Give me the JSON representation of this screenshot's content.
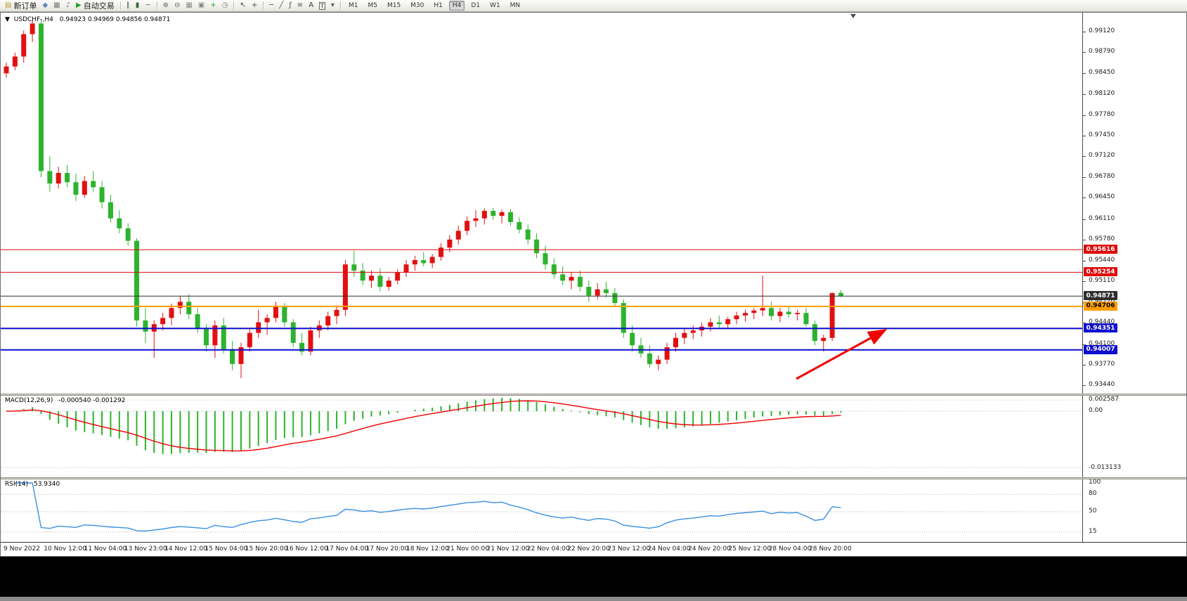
{
  "window": {
    "collapse_glyph": "▼",
    "title": "USDCHF-,H4",
    "ohlc_text": "0.94923 0.94969 0.94856 0.94871"
  },
  "toolbar": {
    "timeframes": [
      "M1",
      "M5",
      "M15",
      "M30",
      "H1",
      "H4",
      "D1",
      "W1",
      "MN"
    ],
    "active_timeframe": "H4",
    "notification_count": "1",
    "items": [
      {
        "kind": "labeled",
        "name": "new-order-button",
        "icon": "new-order-icon",
        "glyph": "▤",
        "glyph_color": "#b8952e",
        "label": "新订单"
      },
      {
        "kind": "icon",
        "name": "symbols-button",
        "icon": "diamond-icon",
        "glyph": "◆",
        "glyph_color": "#5b87c5"
      },
      {
        "kind": "icon",
        "name": "chart-window-button",
        "icon": "chart-window-icon",
        "glyph": "▦",
        "glyph_color": "#777777"
      },
      {
        "kind": "icon",
        "name": "sound-button",
        "icon": "speaker-icon",
        "glyph": "♪",
        "glyph_color": "#777777"
      },
      {
        "kind": "labeled",
        "name": "autotrade-button",
        "icon": "play-icon",
        "glyph": "▶",
        "glyph_color": "#23a523",
        "label": "自动交易"
      },
      {
        "kind": "sep"
      },
      {
        "kind": "icon",
        "name": "bar-chart-type-button",
        "icon": "bars-icon",
        "glyph": "∥",
        "glyph_color": "#4f6b3a"
      },
      {
        "kind": "icon",
        "name": "candle-chart-type-button",
        "icon": "candlestick-icon",
        "glyph": "▮",
        "glyph_color": "#3a6b35"
      },
      {
        "kind": "icon",
        "name": "line-chart-type-button",
        "icon": "line-chart-icon",
        "glyph": "~",
        "glyph_color": "#3a7b3a"
      },
      {
        "kind": "sep"
      },
      {
        "kind": "icon",
        "name": "zoom-in-button",
        "icon": "zoom-in-icon",
        "glyph": "⊕",
        "glyph_color": "#666666"
      },
      {
        "kind": "icon",
        "name": "zoom-out-button",
        "icon": "zoom-out-icon",
        "glyph": "⊖",
        "glyph_color": "#666666"
      },
      {
        "kind": "icon",
        "name": "grid-button",
        "icon": "grid-icon",
        "glyph": "▦",
        "glyph_color": "#8a8a8a"
      },
      {
        "kind": "icon",
        "name": "tile-windows-button",
        "icon": "tile-windows-icon",
        "glyph": "▣",
        "glyph_color": "#8a8a8a"
      },
      {
        "kind": "icon",
        "name": "indicators-button",
        "icon": "add-indicator-icon",
        "glyph": "+",
        "glyph_color": "#1fa51f"
      },
      {
        "kind": "icon",
        "name": "periods-button",
        "icon": "clock-icon",
        "glyph": "◷",
        "glyph_color": "#777777"
      },
      {
        "kind": "sep"
      },
      {
        "kind": "icon",
        "name": "cursor-button",
        "icon": "cursor-icon",
        "glyph": "↖",
        "glyph_color": "#444444"
      },
      {
        "kind": "icon",
        "name": "crosshair-button",
        "icon": "crosshair-icon",
        "glyph": "+",
        "glyph_color": "#444444"
      },
      {
        "kind": "sep"
      },
      {
        "kind": "icon",
        "name": "hline-button",
        "icon": "horizontal-line-icon",
        "glyph": "─",
        "glyph_color": "#555555"
      },
      {
        "kind": "icon",
        "name": "trendline-button",
        "icon": "trendline-icon",
        "glyph": "╱",
        "glyph_color": "#555555"
      },
      {
        "kind": "icon",
        "name": "fibo-button",
        "icon": "fibonacci-icon",
        "glyph": "ƒ",
        "glyph_color": "#555555"
      },
      {
        "kind": "icon",
        "name": "levels-button",
        "icon": "levels-icon",
        "glyph": "≡",
        "glyph_color": "#555555"
      },
      {
        "kind": "icon",
        "name": "text-button",
        "icon": "text-icon",
        "glyph": "A",
        "glyph_color": "#333333"
      },
      {
        "kind": "icon",
        "name": "text-label-button",
        "icon": "text-label-icon",
        "glyph": "T",
        "glyph_color": "#333333",
        "boxed": true
      },
      {
        "kind": "icon",
        "name": "shapes-button",
        "icon": "shapes-dropdown-icon",
        "glyph": "▾",
        "glyph_color": "#555555"
      },
      {
        "kind": "sep"
      },
      {
        "kind": "timeframes"
      }
    ]
  },
  "chart_data": {
    "type": "candlestick",
    "symbol": "USDCHF-",
    "period": "H4",
    "up_color": "#e21010",
    "down_color": "#2db32d",
    "price_axis_labels": [
      "0.99120",
      "0.98790",
      "0.98450",
      "0.98120",
      "0.97780",
      "0.97450",
      "0.97120",
      "0.96780",
      "0.96450",
      "0.96110",
      "0.95780",
      "0.95440",
      "0.95110",
      "0.94770",
      "0.94440",
      "0.94100",
      "0.93770",
      "0.93440"
    ],
    "time_axis_labels": [
      "9 Nov 2022",
      "10 Nov 12:00",
      "11 Nov 04:00",
      "13 Nov 23:00",
      "14 Nov 12:00",
      "15 Nov 04:00",
      "15 Nov 20:00",
      "16 Nov 12:00",
      "17 Nov 04:00",
      "17 Nov 20:00",
      "18 Nov 12:00",
      "21 Nov 00:00",
      "21 Nov 12:00",
      "22 Nov 04:00",
      "22 Nov 20:00",
      "23 Nov 12:00",
      "24 Nov 04:00",
      "24 Nov 20:00",
      "25 Nov 12:00",
      "28 Nov 04:00",
      "28 Nov 20:00"
    ],
    "levels": [
      {
        "name": "resistance-level-1",
        "value": 0.95616,
        "label": "0.95616",
        "color": "#dd0b0b",
        "width": 1
      },
      {
        "name": "resistance-level-2",
        "value": 0.95254,
        "label": "0.95254",
        "color": "#dd0b0b",
        "width": 1
      },
      {
        "name": "current-price-level",
        "value": 0.94871,
        "label": "0.94871",
        "color": "#2e2e2e",
        "width": 1
      },
      {
        "name": "pivot-level",
        "value": 0.94706,
        "label": "0.94706",
        "color": "#ff9e00",
        "width": 2,
        "text_color": "#000000"
      },
      {
        "name": "support-level-1",
        "value": 0.94351,
        "label": "0.94351",
        "color": "#0d0dcf",
        "width": 2
      },
      {
        "name": "support-level-2",
        "value": 0.94007,
        "label": "0.94007",
        "color": "#0d0dcf",
        "width": 2
      }
    ],
    "candles": [
      [
        0.9845,
        0.9862,
        0.9838,
        0.9856
      ],
      [
        0.9856,
        0.9878,
        0.985,
        0.9872
      ],
      [
        0.9872,
        0.9914,
        0.9862,
        0.9908
      ],
      [
        0.9908,
        0.993,
        0.9895,
        0.9925
      ],
      [
        0.9925,
        0.9932,
        0.9678,
        0.9688
      ],
      [
        0.9688,
        0.9712,
        0.9655,
        0.9668
      ],
      [
        0.9668,
        0.9695,
        0.966,
        0.9685
      ],
      [
        0.9685,
        0.9698,
        0.9662,
        0.967
      ],
      [
        0.967,
        0.9684,
        0.964,
        0.965
      ],
      [
        0.965,
        0.968,
        0.9645,
        0.9672
      ],
      [
        0.9672,
        0.9688,
        0.9655,
        0.9662
      ],
      [
        0.9662,
        0.9672,
        0.9628,
        0.9638
      ],
      [
        0.9638,
        0.965,
        0.9605,
        0.9612
      ],
      [
        0.9612,
        0.9625,
        0.9588,
        0.9596
      ],
      [
        0.9596,
        0.9604,
        0.9568,
        0.9576
      ],
      [
        0.9576,
        0.958,
        0.9438,
        0.9448
      ],
      [
        0.9448,
        0.9468,
        0.9412,
        0.943
      ],
      [
        0.943,
        0.9448,
        0.9388,
        0.9442
      ],
      [
        0.9442,
        0.946,
        0.9432,
        0.9452
      ],
      [
        0.9452,
        0.9475,
        0.944,
        0.9468
      ],
      [
        0.9468,
        0.9488,
        0.9458,
        0.9478
      ],
      [
        0.9478,
        0.949,
        0.945,
        0.9458
      ],
      [
        0.9458,
        0.9468,
        0.9428,
        0.9435
      ],
      [
        0.9435,
        0.9442,
        0.9398,
        0.9408
      ],
      [
        0.9408,
        0.9448,
        0.9388,
        0.944
      ],
      [
        0.944,
        0.9452,
        0.9395,
        0.9402
      ],
      [
        0.9402,
        0.9415,
        0.9368,
        0.9378
      ],
      [
        0.9378,
        0.9412,
        0.9355,
        0.9405
      ],
      [
        0.9405,
        0.9435,
        0.9398,
        0.9428
      ],
      [
        0.9428,
        0.9465,
        0.942,
        0.9445
      ],
      [
        0.9445,
        0.9458,
        0.9425,
        0.9452
      ],
      [
        0.9452,
        0.9478,
        0.9445,
        0.947
      ],
      [
        0.947,
        0.9476,
        0.9438,
        0.9445
      ],
      [
        0.9445,
        0.945,
        0.9405,
        0.9412
      ],
      [
        0.9412,
        0.9428,
        0.9392,
        0.9398
      ],
      [
        0.9398,
        0.9438,
        0.9392,
        0.9432
      ],
      [
        0.9432,
        0.9448,
        0.942,
        0.944
      ],
      [
        0.944,
        0.9462,
        0.9432,
        0.9455
      ],
      [
        0.9455,
        0.9472,
        0.9442,
        0.9465
      ],
      [
        0.9465,
        0.9545,
        0.9455,
        0.9538
      ],
      [
        0.9538,
        0.956,
        0.9518,
        0.9528
      ],
      [
        0.9528,
        0.954,
        0.9505,
        0.9512
      ],
      [
        0.9512,
        0.9528,
        0.95,
        0.952
      ],
      [
        0.952,
        0.9532,
        0.9495,
        0.9502
      ],
      [
        0.9502,
        0.9518,
        0.9496,
        0.9512
      ],
      [
        0.9512,
        0.953,
        0.9506,
        0.9525
      ],
      [
        0.9525,
        0.9545,
        0.9518,
        0.9538
      ],
      [
        0.9538,
        0.9552,
        0.9528,
        0.9545
      ],
      [
        0.9545,
        0.9558,
        0.9535,
        0.954
      ],
      [
        0.954,
        0.9555,
        0.9532,
        0.955
      ],
      [
        0.955,
        0.9572,
        0.9544,
        0.9565
      ],
      [
        0.9565,
        0.9585,
        0.9558,
        0.9578
      ],
      [
        0.9578,
        0.96,
        0.957,
        0.9592
      ],
      [
        0.9592,
        0.9615,
        0.9585,
        0.9608
      ],
      [
        0.9608,
        0.9625,
        0.9598,
        0.9612
      ],
      [
        0.9612,
        0.9628,
        0.9602,
        0.9624
      ],
      [
        0.9624,
        0.9629,
        0.961,
        0.9616
      ],
      [
        0.9616,
        0.9626,
        0.9604,
        0.9622
      ],
      [
        0.9622,
        0.9627,
        0.96,
        0.9606
      ],
      [
        0.9606,
        0.9614,
        0.9588,
        0.9594
      ],
      [
        0.9594,
        0.9602,
        0.957,
        0.9578
      ],
      [
        0.9578,
        0.9588,
        0.9548,
        0.9556
      ],
      [
        0.9556,
        0.9568,
        0.953,
        0.9538
      ],
      [
        0.9538,
        0.9548,
        0.9515,
        0.9522
      ],
      [
        0.9522,
        0.9535,
        0.9505,
        0.9512
      ],
      [
        0.9512,
        0.9525,
        0.9498,
        0.9518
      ],
      [
        0.9518,
        0.9528,
        0.9495,
        0.9502
      ],
      [
        0.9502,
        0.9512,
        0.9478,
        0.9488
      ],
      [
        0.9488,
        0.9508,
        0.9482,
        0.9498
      ],
      [
        0.9498,
        0.951,
        0.9485,
        0.9492
      ],
      [
        0.9492,
        0.95,
        0.947,
        0.9476
      ],
      [
        0.9476,
        0.9482,
        0.942,
        0.9428
      ],
      [
        0.9428,
        0.944,
        0.9398,
        0.9408
      ],
      [
        0.9408,
        0.942,
        0.9388,
        0.9395
      ],
      [
        0.9395,
        0.9408,
        0.9372,
        0.9378
      ],
      [
        0.9378,
        0.9392,
        0.9368,
        0.9385
      ],
      [
        0.9385,
        0.9412,
        0.9378,
        0.9405
      ],
      [
        0.9405,
        0.9428,
        0.9398,
        0.942
      ],
      [
        0.942,
        0.9435,
        0.941,
        0.9428
      ],
      [
        0.9428,
        0.944,
        0.9418,
        0.9432
      ],
      [
        0.9432,
        0.9445,
        0.9422,
        0.9438
      ],
      [
        0.9438,
        0.9452,
        0.943,
        0.9445
      ],
      [
        0.9445,
        0.9456,
        0.9436,
        0.9442
      ],
      [
        0.9442,
        0.9454,
        0.9434,
        0.945
      ],
      [
        0.945,
        0.9462,
        0.9442,
        0.9456
      ],
      [
        0.9456,
        0.9465,
        0.9446,
        0.946
      ],
      [
        0.946,
        0.9468,
        0.945,
        0.9464
      ],
      [
        0.9464,
        0.952,
        0.9455,
        0.9468
      ],
      [
        0.9468,
        0.9478,
        0.9448,
        0.9455
      ],
      [
        0.9455,
        0.9468,
        0.9445,
        0.9462
      ],
      [
        0.9462,
        0.9472,
        0.9452,
        0.9458
      ],
      [
        0.9458,
        0.9465,
        0.9448,
        0.946
      ],
      [
        0.946,
        0.9468,
        0.9438,
        0.9442
      ],
      [
        0.9442,
        0.9448,
        0.9408,
        0.9415
      ],
      [
        0.9415,
        0.9425,
        0.9398,
        0.942
      ],
      [
        0.942,
        0.9493,
        0.9415,
        0.9492
      ],
      [
        0.94923,
        0.94969,
        0.94856,
        0.94871
      ]
    ],
    "indicators": {
      "macd": {
        "label": "MACD(12,26,9)",
        "values_text": "-0.000540 -0.001292",
        "fast": 12,
        "slow": 26,
        "signal": 9,
        "axis_labels": [
          "0.002587",
          "0.00",
          "-0.013133"
        ],
        "histogram_color": "#2db32d",
        "signal_color": "#f00000"
      },
      "rsi": {
        "label": "RSI(14)",
        "value_text": "53.9340",
        "period": 14,
        "axis_labels": [
          "100",
          "80",
          "50",
          "15"
        ],
        "line_color": "#3b8fe0"
      }
    },
    "annotation_arrow": {
      "color": "#f00000"
    }
  }
}
